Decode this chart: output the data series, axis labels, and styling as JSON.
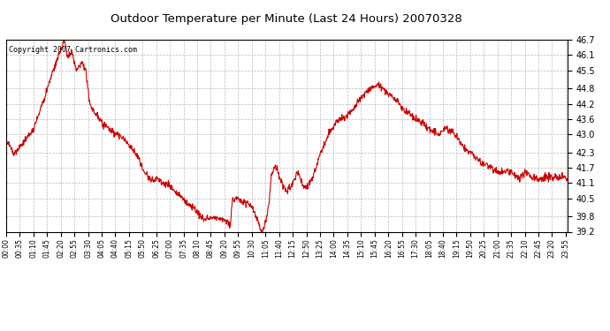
{
  "title": "Outdoor Temperature per Minute (Last 24 Hours) 20070328",
  "copyright": "Copyright 2007 Cartronics.com",
  "line_color": "#cc0000",
  "background_color": "#ffffff",
  "grid_color": "#bbbbbb",
  "ylim": [
    39.2,
    46.7
  ],
  "yticks": [
    39.2,
    39.8,
    40.5,
    41.1,
    41.7,
    42.3,
    43.0,
    43.6,
    44.2,
    44.8,
    45.5,
    46.1,
    46.7
  ],
  "xtick_labels": [
    "00:00",
    "00:35",
    "01:10",
    "01:45",
    "02:20",
    "02:55",
    "03:30",
    "04:05",
    "04:40",
    "05:15",
    "05:50",
    "06:25",
    "07:00",
    "07:35",
    "08:10",
    "08:45",
    "09:20",
    "09:55",
    "10:30",
    "11:05",
    "11:40",
    "12:15",
    "12:50",
    "13:25",
    "14:00",
    "14:35",
    "15:10",
    "15:45",
    "16:20",
    "16:55",
    "17:30",
    "18:05",
    "18:40",
    "19:15",
    "19:50",
    "20:25",
    "21:00",
    "21:35",
    "22:10",
    "22:45",
    "23:20",
    "23:55"
  ],
  "keypoints": [
    [
      0,
      42.8
    ],
    [
      20,
      42.3
    ],
    [
      40,
      42.6
    ],
    [
      70,
      43.2
    ],
    [
      100,
      44.5
    ],
    [
      120,
      45.5
    ],
    [
      150,
      46.7
    ],
    [
      158,
      46.0
    ],
    [
      168,
      46.3
    ],
    [
      180,
      45.5
    ],
    [
      195,
      45.8
    ],
    [
      205,
      45.4
    ],
    [
      215,
      44.2
    ],
    [
      230,
      43.8
    ],
    [
      245,
      43.5
    ],
    [
      265,
      43.2
    ],
    [
      285,
      43.0
    ],
    [
      310,
      42.7
    ],
    [
      335,
      42.2
    ],
    [
      355,
      41.5
    ],
    [
      375,
      41.2
    ],
    [
      390,
      41.3
    ],
    [
      400,
      41.1
    ],
    [
      420,
      41.0
    ],
    [
      440,
      40.7
    ],
    [
      460,
      40.4
    ],
    [
      475,
      40.2
    ],
    [
      490,
      40.0
    ],
    [
      500,
      39.8
    ],
    [
      510,
      39.7
    ],
    [
      525,
      39.75
    ],
    [
      535,
      39.8
    ],
    [
      545,
      39.75
    ],
    [
      555,
      39.7
    ],
    [
      565,
      39.6
    ],
    [
      575,
      39.5
    ],
    [
      580,
      40.4
    ],
    [
      590,
      40.5
    ],
    [
      600,
      40.45
    ],
    [
      610,
      40.4
    ],
    [
      618,
      40.3
    ],
    [
      625,
      40.2
    ],
    [
      632,
      40.1
    ],
    [
      638,
      39.9
    ],
    [
      644,
      39.7
    ],
    [
      650,
      39.4
    ],
    [
      655,
      39.2
    ],
    [
      660,
      39.3
    ],
    [
      667,
      39.6
    ],
    [
      675,
      40.5
    ],
    [
      680,
      41.4
    ],
    [
      690,
      41.8
    ],
    [
      695,
      41.6
    ],
    [
      700,
      41.3
    ],
    [
      710,
      41.0
    ],
    [
      720,
      40.8
    ],
    [
      730,
      41.0
    ],
    [
      740,
      41.3
    ],
    [
      750,
      41.5
    ],
    [
      760,
      41.0
    ],
    [
      768,
      40.9
    ],
    [
      778,
      41.1
    ],
    [
      790,
      41.5
    ],
    [
      800,
      42.0
    ],
    [
      815,
      42.6
    ],
    [
      830,
      43.1
    ],
    [
      845,
      43.5
    ],
    [
      860,
      43.6
    ],
    [
      875,
      43.7
    ],
    [
      890,
      44.0
    ],
    [
      905,
      44.3
    ],
    [
      920,
      44.6
    ],
    [
      935,
      44.8
    ],
    [
      948,
      44.9
    ],
    [
      955,
      44.9
    ],
    [
      965,
      44.8
    ],
    [
      980,
      44.6
    ],
    [
      995,
      44.4
    ],
    [
      1008,
      44.2
    ],
    [
      1020,
      44.0
    ],
    [
      1035,
      43.8
    ],
    [
      1050,
      43.6
    ],
    [
      1065,
      43.5
    ],
    [
      1080,
      43.3
    ],
    [
      1095,
      43.1
    ],
    [
      1108,
      43.0
    ],
    [
      1118,
      43.1
    ],
    [
      1128,
      43.3
    ],
    [
      1140,
      43.1
    ],
    [
      1150,
      43.0
    ],
    [
      1160,
      42.8
    ],
    [
      1175,
      42.5
    ],
    [
      1190,
      42.3
    ],
    [
      1205,
      42.1
    ],
    [
      1218,
      41.9
    ],
    [
      1230,
      41.8
    ],
    [
      1245,
      41.7
    ],
    [
      1255,
      41.6
    ],
    [
      1265,
      41.5
    ],
    [
      1275,
      41.5
    ],
    [
      1285,
      41.55
    ],
    [
      1295,
      41.5
    ],
    [
      1305,
      41.4
    ],
    [
      1315,
      41.3
    ],
    [
      1325,
      41.4
    ],
    [
      1335,
      41.5
    ],
    [
      1345,
      41.4
    ],
    [
      1355,
      41.3
    ],
    [
      1365,
      41.25
    ],
    [
      1375,
      41.3
    ],
    [
      1385,
      41.35
    ],
    [
      1395,
      41.3
    ],
    [
      1405,
      41.35
    ],
    [
      1415,
      41.3
    ],
    [
      1425,
      41.35
    ],
    [
      1439,
      41.3
    ]
  ]
}
